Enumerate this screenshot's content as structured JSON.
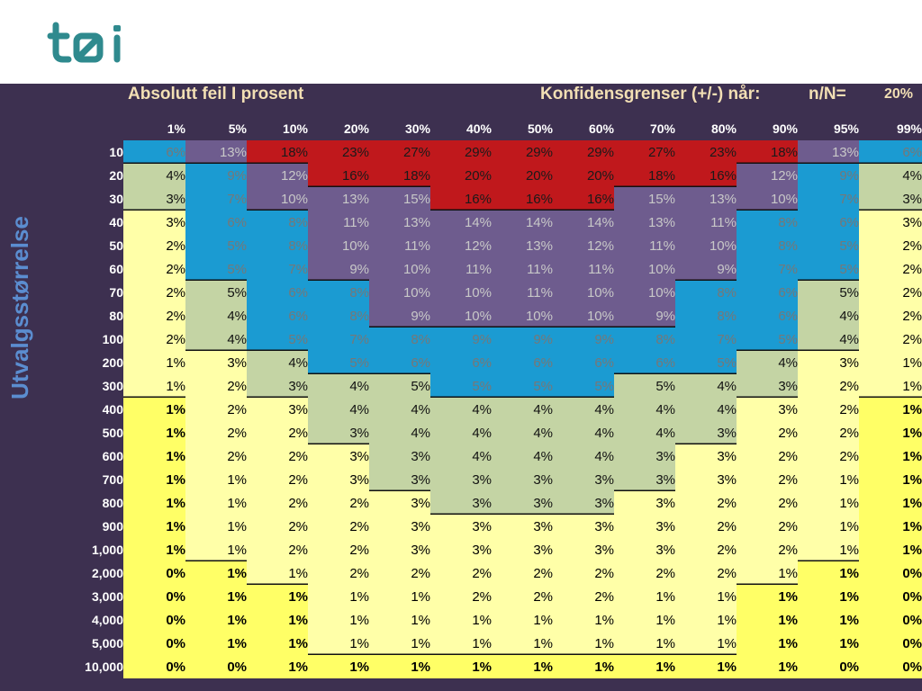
{
  "header": {
    "title": "Absolutt feil I prosent",
    "confidence_label": "Konfidensgrenser (+/-) når:",
    "ratio_label": "n/N=",
    "corner_value": "20%"
  },
  "axis": {
    "row_label": "Utvalgsstørrelse"
  },
  "colors": {
    "panel": "#3d3050",
    "red": "#c0181c",
    "purple": "#6e5c8e",
    "blue": "#1b9bd2",
    "green": "#c4d4a4",
    "pale_yellow": "#ffffa8",
    "yellow": "#ffff66",
    "header_text": "#f2dfb4",
    "axis_text": "#5b8dd0",
    "logo": "#2f8a8e"
  },
  "columns": [
    "1%",
    "5%",
    "10%",
    "20%",
    "30%",
    "40%",
    "50%",
    "60%",
    "70%",
    "80%",
    "90%",
    "95%",
    "99%"
  ],
  "rows": [
    {
      "label": "10",
      "values": [
        "6%",
        "13%",
        "18%",
        "23%",
        "27%",
        "29%",
        "29%",
        "29%",
        "27%",
        "23%",
        "18%",
        "13%",
        "6%"
      ],
      "colors": [
        "B",
        "P",
        "R",
        "R",
        "R",
        "R",
        "R",
        "R",
        "R",
        "R",
        "R",
        "P",
        "B"
      ]
    },
    {
      "label": "20",
      "values": [
        "4%",
        "9%",
        "12%",
        "16%",
        "18%",
        "20%",
        "20%",
        "20%",
        "18%",
        "16%",
        "12%",
        "9%",
        "4%"
      ],
      "colors": [
        "G",
        "B",
        "P",
        "R",
        "R",
        "R",
        "R",
        "R",
        "R",
        "R",
        "P",
        "B",
        "G"
      ]
    },
    {
      "label": "30",
      "values": [
        "3%",
        "7%",
        "10%",
        "13%",
        "15%",
        "16%",
        "16%",
        "16%",
        "15%",
        "13%",
        "10%",
        "7%",
        "3%"
      ],
      "colors": [
        "G",
        "B",
        "P",
        "P",
        "P",
        "R",
        "R",
        "R",
        "P",
        "P",
        "P",
        "B",
        "G"
      ]
    },
    {
      "label": "40",
      "values": [
        "3%",
        "6%",
        "8%",
        "11%",
        "13%",
        "14%",
        "14%",
        "14%",
        "13%",
        "11%",
        "8%",
        "6%",
        "3%"
      ],
      "colors": [
        "Y",
        "B",
        "B",
        "P",
        "P",
        "P",
        "P",
        "P",
        "P",
        "P",
        "B",
        "B",
        "Y"
      ]
    },
    {
      "label": "50",
      "values": [
        "2%",
        "5%",
        "8%",
        "10%",
        "11%",
        "12%",
        "13%",
        "12%",
        "11%",
        "10%",
        "8%",
        "5%",
        "2%"
      ],
      "colors": [
        "Y",
        "B",
        "B",
        "P",
        "P",
        "P",
        "P",
        "P",
        "P",
        "P",
        "B",
        "B",
        "Y"
      ]
    },
    {
      "label": "60",
      "values": [
        "2%",
        "5%",
        "7%",
        "9%",
        "10%",
        "11%",
        "11%",
        "11%",
        "10%",
        "9%",
        "7%",
        "5%",
        "2%"
      ],
      "colors": [
        "Y",
        "B",
        "B",
        "P",
        "P",
        "P",
        "P",
        "P",
        "P",
        "P",
        "B",
        "B",
        "Y"
      ]
    },
    {
      "label": "70",
      "values": [
        "2%",
        "5%",
        "6%",
        "8%",
        "10%",
        "10%",
        "11%",
        "10%",
        "10%",
        "8%",
        "6%",
        "5%",
        "2%"
      ],
      "colors": [
        "Y",
        "G",
        "B",
        "B",
        "P",
        "P",
        "P",
        "P",
        "P",
        "B",
        "B",
        "G",
        "Y"
      ]
    },
    {
      "label": "80",
      "values": [
        "2%",
        "4%",
        "6%",
        "8%",
        "9%",
        "10%",
        "10%",
        "10%",
        "9%",
        "8%",
        "6%",
        "4%",
        "2%"
      ],
      "colors": [
        "Y",
        "G",
        "B",
        "B",
        "P",
        "P",
        "P",
        "P",
        "P",
        "B",
        "B",
        "G",
        "Y"
      ]
    },
    {
      "label": "100",
      "values": [
        "2%",
        "4%",
        "5%",
        "7%",
        "8%",
        "9%",
        "9%",
        "9%",
        "8%",
        "7%",
        "5%",
        "4%",
        "2%"
      ],
      "colors": [
        "Y",
        "G",
        "B",
        "B",
        "B",
        "B",
        "B",
        "B",
        "B",
        "B",
        "B",
        "G",
        "Y"
      ]
    },
    {
      "label": "200",
      "values": [
        "1%",
        "3%",
        "4%",
        "5%",
        "6%",
        "6%",
        "6%",
        "6%",
        "6%",
        "5%",
        "4%",
        "3%",
        "1%"
      ],
      "colors": [
        "Y",
        "Y",
        "G",
        "B",
        "B",
        "B",
        "B",
        "B",
        "B",
        "B",
        "G",
        "Y",
        "Y"
      ]
    },
    {
      "label": "300",
      "values": [
        "1%",
        "2%",
        "3%",
        "4%",
        "5%",
        "5%",
        "5%",
        "5%",
        "5%",
        "4%",
        "3%",
        "2%",
        "1%"
      ],
      "colors": [
        "Y",
        "Y",
        "G",
        "G",
        "G",
        "B",
        "B",
        "B",
        "G",
        "G",
        "G",
        "Y",
        "Y"
      ]
    },
    {
      "label": "400",
      "values": [
        "1%",
        "2%",
        "3%",
        "4%",
        "4%",
        "4%",
        "4%",
        "4%",
        "4%",
        "4%",
        "3%",
        "2%",
        "1%"
      ],
      "colors": [
        "V",
        "Y",
        "Y",
        "G",
        "G",
        "G",
        "G",
        "G",
        "G",
        "G",
        "Y",
        "Y",
        "V"
      ]
    },
    {
      "label": "500",
      "values": [
        "1%",
        "2%",
        "2%",
        "3%",
        "4%",
        "4%",
        "4%",
        "4%",
        "4%",
        "3%",
        "2%",
        "2%",
        "1%"
      ],
      "colors": [
        "V",
        "Y",
        "Y",
        "G",
        "G",
        "G",
        "G",
        "G",
        "G",
        "G",
        "Y",
        "Y",
        "V"
      ]
    },
    {
      "label": "600",
      "values": [
        "1%",
        "2%",
        "2%",
        "3%",
        "3%",
        "4%",
        "4%",
        "4%",
        "3%",
        "3%",
        "2%",
        "2%",
        "1%"
      ],
      "colors": [
        "V",
        "Y",
        "Y",
        "Y",
        "G",
        "G",
        "G",
        "G",
        "G",
        "Y",
        "Y",
        "Y",
        "V"
      ]
    },
    {
      "label": "700",
      "values": [
        "1%",
        "1%",
        "2%",
        "3%",
        "3%",
        "3%",
        "3%",
        "3%",
        "3%",
        "3%",
        "2%",
        "1%",
        "1%"
      ],
      "colors": [
        "V",
        "Y",
        "Y",
        "Y",
        "G",
        "G",
        "G",
        "G",
        "G",
        "Y",
        "Y",
        "Y",
        "V"
      ]
    },
    {
      "label": "800",
      "values": [
        "1%",
        "1%",
        "2%",
        "2%",
        "3%",
        "3%",
        "3%",
        "3%",
        "3%",
        "2%",
        "2%",
        "1%",
        "1%"
      ],
      "colors": [
        "V",
        "Y",
        "Y",
        "Y",
        "Y",
        "G",
        "G",
        "G",
        "Y",
        "Y",
        "Y",
        "Y",
        "V"
      ]
    },
    {
      "label": "900",
      "values": [
        "1%",
        "1%",
        "2%",
        "2%",
        "3%",
        "3%",
        "3%",
        "3%",
        "3%",
        "2%",
        "2%",
        "1%",
        "1%"
      ],
      "colors": [
        "V",
        "Y",
        "Y",
        "Y",
        "Y",
        "Y",
        "Y",
        "Y",
        "Y",
        "Y",
        "Y",
        "Y",
        "V"
      ]
    },
    {
      "label": "1,000",
      "values": [
        "1%",
        "1%",
        "2%",
        "2%",
        "3%",
        "3%",
        "3%",
        "3%",
        "3%",
        "2%",
        "2%",
        "1%",
        "1%"
      ],
      "colors": [
        "V",
        "Y",
        "Y",
        "Y",
        "Y",
        "Y",
        "Y",
        "Y",
        "Y",
        "Y",
        "Y",
        "Y",
        "V"
      ]
    },
    {
      "label": "2,000",
      "values": [
        "0%",
        "1%",
        "1%",
        "2%",
        "2%",
        "2%",
        "2%",
        "2%",
        "2%",
        "2%",
        "1%",
        "1%",
        "0%"
      ],
      "colors": [
        "V",
        "V",
        "Y",
        "Y",
        "Y",
        "Y",
        "Y",
        "Y",
        "Y",
        "Y",
        "Y",
        "V",
        "V"
      ]
    },
    {
      "label": "3,000",
      "values": [
        "0%",
        "1%",
        "1%",
        "1%",
        "1%",
        "2%",
        "2%",
        "2%",
        "1%",
        "1%",
        "1%",
        "1%",
        "0%"
      ],
      "colors": [
        "V",
        "V",
        "V",
        "Y",
        "Y",
        "Y",
        "Y",
        "Y",
        "Y",
        "Y",
        "V",
        "V",
        "V"
      ]
    },
    {
      "label": "4,000",
      "values": [
        "0%",
        "1%",
        "1%",
        "1%",
        "1%",
        "1%",
        "1%",
        "1%",
        "1%",
        "1%",
        "1%",
        "1%",
        "0%"
      ],
      "colors": [
        "V",
        "V",
        "V",
        "Y",
        "Y",
        "Y",
        "Y",
        "Y",
        "Y",
        "Y",
        "V",
        "V",
        "V"
      ]
    },
    {
      "label": "5,000",
      "values": [
        "0%",
        "1%",
        "1%",
        "1%",
        "1%",
        "1%",
        "1%",
        "1%",
        "1%",
        "1%",
        "1%",
        "1%",
        "0%"
      ],
      "colors": [
        "V",
        "V",
        "V",
        "Y",
        "Y",
        "Y",
        "Y",
        "Y",
        "Y",
        "Y",
        "V",
        "V",
        "V"
      ]
    },
    {
      "label": "10,000",
      "values": [
        "0%",
        "0%",
        "1%",
        "1%",
        "1%",
        "1%",
        "1%",
        "1%",
        "1%",
        "1%",
        "1%",
        "0%",
        "0%"
      ],
      "colors": [
        "V",
        "V",
        "V",
        "V",
        "V",
        "V",
        "V",
        "V",
        "V",
        "V",
        "V",
        "V",
        "V"
      ]
    }
  ]
}
